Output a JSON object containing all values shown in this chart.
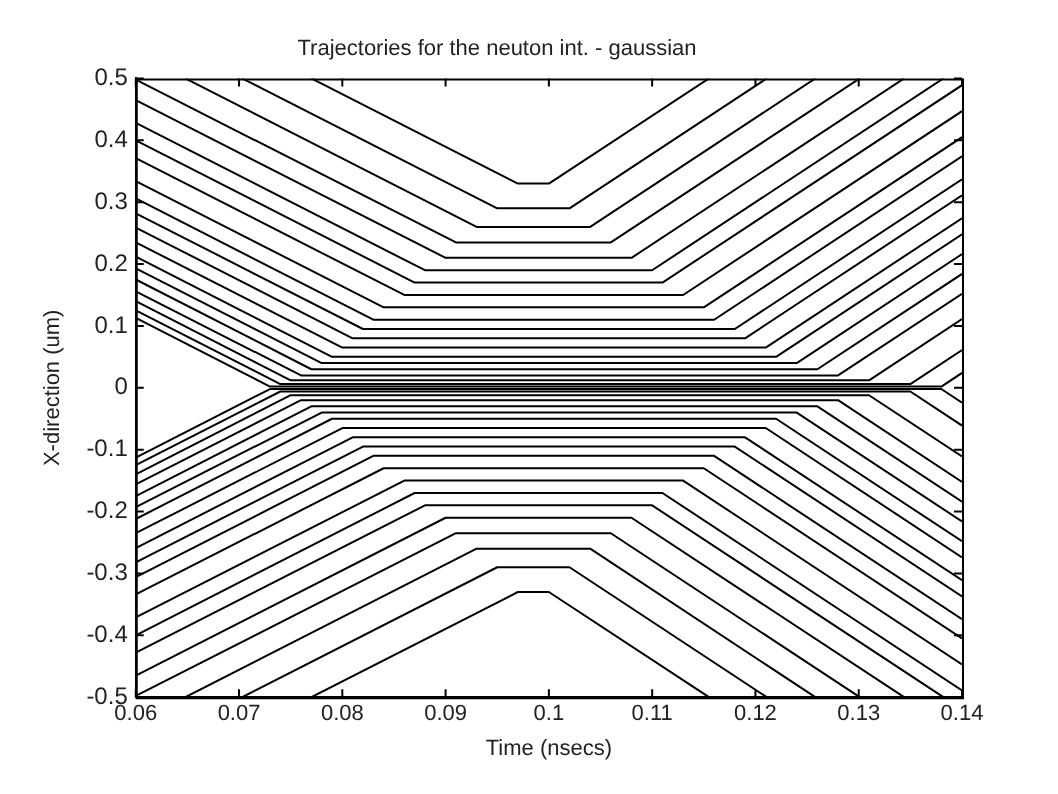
{
  "chart_data": {
    "type": "line",
    "title": "Trajectories for the neuton int. - gaussian",
    "xlabel": "Time (nsecs)",
    "ylabel": "X-direction (um)",
    "marker": "none",
    "grid": false,
    "legend": false,
    "xlim": [
      0.06,
      0.14
    ],
    "xticks": [
      0.06,
      0.07,
      0.08,
      0.09,
      0.1,
      0.11,
      0.12,
      0.13,
      0.14
    ],
    "ylim": [
      -0.5,
      0.5
    ],
    "yticks": [
      -0.5,
      -0.4,
      -0.3,
      -0.2,
      -0.1,
      0,
      0.1,
      0.2,
      0.3,
      0.4,
      0.5
    ],
    "series": [
      {
        "color": "#000000",
        "x": [
          0.077,
          0.097,
          0.1,
          0.1155
        ],
        "values": [
          0.5,
          0.33,
          0.33,
          0.5
        ]
      },
      {
        "color": "#000000",
        "x": [
          0.0703,
          0.095,
          0.102,
          0.1211
        ],
        "values": [
          0.5,
          0.29,
          0.29,
          0.5
        ]
      },
      {
        "color": "#000000",
        "x": [
          0.0648,
          0.093,
          0.104,
          0.1258
        ],
        "values": [
          0.5,
          0.26,
          0.26,
          0.5
        ]
      },
      {
        "color": "#000000",
        "x": [
          0.06,
          0.091,
          0.106,
          0.1301
        ],
        "values": [
          0.498,
          0.235,
          0.235,
          0.5
        ]
      },
      {
        "color": "#000000",
        "x": [
          0.06,
          0.09,
          0.108,
          0.1344
        ],
        "values": [
          0.465,
          0.21,
          0.21,
          0.5
        ]
      },
      {
        "color": "#000000",
        "x": [
          0.06,
          0.088,
          0.11,
          0.1382
        ],
        "values": [
          0.428,
          0.19,
          0.19,
          0.5
        ]
      },
      {
        "color": "#000000",
        "x": [
          0.06,
          0.087,
          0.111,
          0.14
        ],
        "values": [
          0.4,
          0.17,
          0.17,
          0.489
        ]
      },
      {
        "color": "#000000",
        "x": [
          0.06,
          0.086,
          0.113,
          0.14
        ],
        "values": [
          0.371,
          0.15,
          0.15,
          0.447
        ]
      },
      {
        "color": "#000000",
        "x": [
          0.06,
          0.084,
          0.115,
          0.14
        ],
        "values": [
          0.334,
          0.13,
          0.13,
          0.405
        ]
      },
      {
        "color": "#000000",
        "x": [
          0.06,
          0.083,
          0.116,
          0.14
        ],
        "values": [
          0.306,
          0.11,
          0.11,
          0.374
        ]
      },
      {
        "color": "#000000",
        "x": [
          0.06,
          0.082,
          0.118,
          0.14
        ],
        "values": [
          0.282,
          0.095,
          0.095,
          0.337
        ]
      },
      {
        "color": "#000000",
        "x": [
          0.06,
          0.081,
          0.119,
          0.14
        ],
        "values": [
          0.259,
          0.08,
          0.08,
          0.311
        ]
      },
      {
        "color": "#000000",
        "x": [
          0.06,
          0.08,
          0.121,
          0.14
        ],
        "values": [
          0.235,
          0.065,
          0.065,
          0.274
        ]
      },
      {
        "color": "#000000",
        "x": [
          0.06,
          0.079,
          0.122,
          0.14
        ],
        "values": [
          0.212,
          0.05,
          0.05,
          0.248
        ]
      },
      {
        "color": "#000000",
        "x": [
          0.06,
          0.078,
          0.124,
          0.14
        ],
        "values": [
          0.193,
          0.04,
          0.04,
          0.216
        ]
      },
      {
        "color": "#000000",
        "x": [
          0.06,
          0.077,
          0.126,
          0.14
        ],
        "values": [
          0.175,
          0.03,
          0.03,
          0.184
        ]
      },
      {
        "color": "#000000",
        "x": [
          0.06,
          0.076,
          0.128,
          0.14
        ],
        "values": [
          0.156,
          0.02,
          0.02,
          0.152
        ]
      },
      {
        "color": "#000000",
        "x": [
          0.06,
          0.075,
          0.131,
          0.14
        ],
        "values": [
          0.14,
          0.012,
          0.012,
          0.111
        ]
      },
      {
        "color": "#000000",
        "x": [
          0.06,
          0.074,
          0.135,
          0.14
        ],
        "values": [
          0.125,
          0.006,
          0.006,
          0.061
        ]
      },
      {
        "color": "#000000",
        "x": [
          0.06,
          0.073,
          0.138,
          0.14
        ],
        "values": [
          0.113,
          0.002,
          0.002,
          0.024
        ]
      },
      {
        "color": "#000000",
        "x": [
          0.077,
          0.097,
          0.1,
          0.1155
        ],
        "values": [
          -0.5,
          -0.33,
          -0.33,
          -0.5
        ]
      },
      {
        "color": "#000000",
        "x": [
          0.0703,
          0.095,
          0.102,
          0.1211
        ],
        "values": [
          -0.5,
          -0.29,
          -0.29,
          -0.5
        ]
      },
      {
        "color": "#000000",
        "x": [
          0.0648,
          0.093,
          0.104,
          0.1258
        ],
        "values": [
          -0.5,
          -0.26,
          -0.26,
          -0.5
        ]
      },
      {
        "color": "#000000",
        "x": [
          0.06,
          0.091,
          0.106,
          0.1301
        ],
        "values": [
          -0.498,
          -0.235,
          -0.235,
          -0.5
        ]
      },
      {
        "color": "#000000",
        "x": [
          0.06,
          0.09,
          0.108,
          0.1344
        ],
        "values": [
          -0.465,
          -0.21,
          -0.21,
          -0.5
        ]
      },
      {
        "color": "#000000",
        "x": [
          0.06,
          0.088,
          0.11,
          0.1382
        ],
        "values": [
          -0.428,
          -0.19,
          -0.19,
          -0.5
        ]
      },
      {
        "color": "#000000",
        "x": [
          0.06,
          0.087,
          0.111,
          0.14
        ],
        "values": [
          -0.4,
          -0.17,
          -0.17,
          -0.489
        ]
      },
      {
        "color": "#000000",
        "x": [
          0.06,
          0.086,
          0.113,
          0.14
        ],
        "values": [
          -0.371,
          -0.15,
          -0.15,
          -0.447
        ]
      },
      {
        "color": "#000000",
        "x": [
          0.06,
          0.084,
          0.115,
          0.14
        ],
        "values": [
          -0.334,
          -0.13,
          -0.13,
          -0.405
        ]
      },
      {
        "color": "#000000",
        "x": [
          0.06,
          0.083,
          0.116,
          0.14
        ],
        "values": [
          -0.306,
          -0.11,
          -0.11,
          -0.374
        ]
      },
      {
        "color": "#000000",
        "x": [
          0.06,
          0.082,
          0.118,
          0.14
        ],
        "values": [
          -0.282,
          -0.095,
          -0.095,
          -0.337
        ]
      },
      {
        "color": "#000000",
        "x": [
          0.06,
          0.081,
          0.119,
          0.14
        ],
        "values": [
          -0.259,
          -0.08,
          -0.08,
          -0.311
        ]
      },
      {
        "color": "#000000",
        "x": [
          0.06,
          0.08,
          0.121,
          0.14
        ],
        "values": [
          -0.235,
          -0.065,
          -0.065,
          -0.274
        ]
      },
      {
        "color": "#000000",
        "x": [
          0.06,
          0.079,
          0.122,
          0.14
        ],
        "values": [
          -0.212,
          -0.05,
          -0.05,
          -0.248
        ]
      },
      {
        "color": "#000000",
        "x": [
          0.06,
          0.078,
          0.124,
          0.14
        ],
        "values": [
          -0.193,
          -0.04,
          -0.04,
          -0.216
        ]
      },
      {
        "color": "#000000",
        "x": [
          0.06,
          0.077,
          0.126,
          0.14
        ],
        "values": [
          -0.175,
          -0.03,
          -0.03,
          -0.184
        ]
      },
      {
        "color": "#000000",
        "x": [
          0.06,
          0.076,
          0.128,
          0.14
        ],
        "values": [
          -0.156,
          -0.02,
          -0.02,
          -0.152
        ]
      },
      {
        "color": "#000000",
        "x": [
          0.06,
          0.075,
          0.131,
          0.14
        ],
        "values": [
          -0.14,
          -0.012,
          -0.012,
          -0.111
        ]
      },
      {
        "color": "#000000",
        "x": [
          0.06,
          0.074,
          0.135,
          0.14
        ],
        "values": [
          -0.125,
          -0.006,
          -0.006,
          -0.061
        ]
      },
      {
        "color": "#000000",
        "x": [
          0.06,
          0.073,
          0.138,
          0.14
        ],
        "values": [
          -0.113,
          -0.002,
          -0.002,
          -0.024
        ]
      }
    ]
  }
}
